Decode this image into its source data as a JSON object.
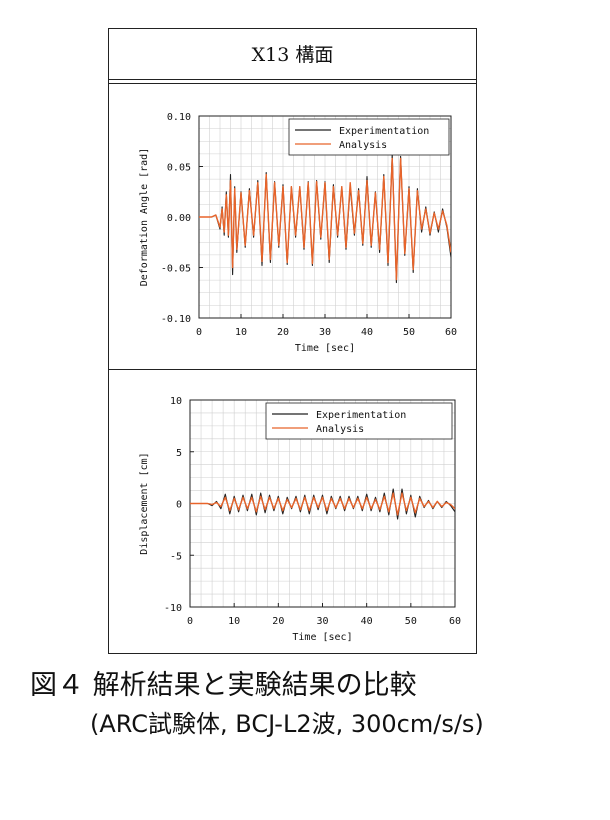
{
  "panel_title": "X13 構面",
  "caption": {
    "line1": "図４ 解析結果と実験結果の比較",
    "line2": "(ARC試験体, BCJ-L2波, 300cm/s/s)"
  },
  "colors": {
    "experimentation": "#222222",
    "analysis": "#e8642a",
    "grid": "#d0d0d0"
  },
  "chart_data": [
    {
      "type": "line",
      "xlabel": "Time [sec]",
      "ylabel": "Deformation Angle [rad]",
      "xlim": [
        0,
        60
      ],
      "ylim": [
        -0.1,
        0.1
      ],
      "xticks": [
        "0",
        "10",
        "20",
        "30",
        "40",
        "50",
        "60"
      ],
      "yticks": [
        "0.10",
        "0.05",
        "0.00",
        "-0.05",
        "-0.10"
      ],
      "grid": true,
      "legend": "top-right",
      "series": [
        {
          "name": "Experimentation",
          "x": [
            0,
            3,
            4,
            5,
            5.5,
            6,
            6.5,
            7,
            7.5,
            8,
            8.5,
            9,
            10,
            11,
            12,
            13,
            14,
            15,
            16,
            17,
            18,
            19,
            20,
            21,
            22,
            23,
            24,
            25,
            26,
            27,
            28,
            29,
            30,
            31,
            32,
            33,
            34,
            35,
            36,
            37,
            38,
            39,
            40,
            41,
            42,
            43,
            44,
            45,
            46,
            47,
            48,
            49,
            50,
            51,
            52,
            53,
            54,
            55,
            56,
            57,
            58,
            59,
            60
          ],
          "y": [
            0,
            0,
            0.002,
            -0.012,
            0.01,
            -0.018,
            0.025,
            -0.02,
            0.042,
            -0.057,
            0.03,
            -0.035,
            0.025,
            -0.03,
            0.028,
            -0.02,
            0.036,
            -0.048,
            0.044,
            -0.045,
            0.035,
            -0.03,
            0.032,
            -0.047,
            0.03,
            -0.02,
            0.03,
            -0.032,
            0.035,
            -0.048,
            0.036,
            -0.022,
            0.035,
            -0.045,
            0.032,
            -0.02,
            0.03,
            -0.032,
            0.03,
            -0.018,
            0.028,
            -0.028,
            0.04,
            -0.03,
            0.025,
            -0.035,
            0.042,
            -0.048,
            0.062,
            -0.065,
            0.06,
            -0.038,
            0.03,
            -0.055,
            0.028,
            -0.015,
            0.01,
            -0.018,
            0.005,
            -0.015,
            0.008,
            -0.01,
            -0.04
          ]
        },
        {
          "name": "Analysis",
          "x": [
            0,
            3,
            4,
            5,
            5.5,
            6,
            6.5,
            7,
            7.5,
            8,
            8.5,
            9,
            10,
            11,
            12,
            13,
            14,
            15,
            16,
            17,
            18,
            19,
            20,
            21,
            22,
            23,
            24,
            25,
            26,
            27,
            28,
            29,
            30,
            31,
            32,
            33,
            34,
            35,
            36,
            37,
            38,
            39,
            40,
            41,
            42,
            43,
            44,
            45,
            46,
            47,
            48,
            49,
            50,
            51,
            52,
            53,
            54,
            55,
            56,
            57,
            58,
            59,
            60
          ],
          "y": [
            0,
            0,
            0.002,
            -0.01,
            0.008,
            -0.015,
            0.022,
            -0.018,
            0.036,
            -0.05,
            0.028,
            -0.032,
            0.024,
            -0.028,
            0.026,
            -0.018,
            0.034,
            -0.044,
            0.042,
            -0.042,
            0.034,
            -0.028,
            0.03,
            -0.045,
            0.03,
            -0.018,
            0.03,
            -0.03,
            0.034,
            -0.046,
            0.035,
            -0.02,
            0.034,
            -0.042,
            0.03,
            -0.018,
            0.03,
            -0.03,
            0.034,
            -0.016,
            0.026,
            -0.026,
            0.036,
            -0.028,
            0.024,
            -0.032,
            0.04,
            -0.045,
            0.058,
            -0.062,
            0.058,
            -0.036,
            0.028,
            -0.052,
            0.026,
            -0.012,
            0.008,
            -0.016,
            0.004,
            -0.012,
            0.006,
            -0.008,
            -0.035
          ]
        }
      ]
    },
    {
      "type": "line",
      "xlabel": "Time [sec]",
      "ylabel": "Displacement [cm]",
      "xlim": [
        0,
        60
      ],
      "ylim": [
        -10,
        10
      ],
      "xticks": [
        "0",
        "10",
        "20",
        "30",
        "40",
        "50",
        "60"
      ],
      "yticks": [
        "10",
        "5",
        "0",
        "-5",
        "-10"
      ],
      "grid": true,
      "legend": "top-right",
      "series": [
        {
          "name": "Experimentation",
          "x": [
            0,
            4,
            5,
            6,
            7,
            8,
            9,
            10,
            11,
            12,
            13,
            14,
            15,
            16,
            17,
            18,
            19,
            20,
            21,
            22,
            23,
            24,
            25,
            26,
            27,
            28,
            29,
            30,
            31,
            32,
            33,
            34,
            35,
            36,
            37,
            38,
            39,
            40,
            41,
            42,
            43,
            44,
            45,
            46,
            47,
            48,
            49,
            50,
            51,
            52,
            53,
            54,
            55,
            56,
            57,
            58,
            59,
            60
          ],
          "y": [
            0,
            0,
            -0.2,
            0.2,
            -0.5,
            0.9,
            -1.0,
            0.7,
            -0.8,
            0.8,
            -0.7,
            0.9,
            -1.1,
            1.0,
            -0.9,
            0.8,
            -0.7,
            0.7,
            -1.0,
            0.6,
            -0.5,
            0.7,
            -0.8,
            0.8,
            -1.0,
            0.8,
            -0.6,
            0.8,
            -1.0,
            0.7,
            -0.5,
            0.7,
            -0.7,
            0.7,
            -0.5,
            0.7,
            -0.7,
            0.9,
            -0.7,
            0.6,
            -0.8,
            1.0,
            -1.1,
            1.4,
            -1.5,
            1.4,
            -1.0,
            0.8,
            -1.3,
            0.7,
            -0.4,
            0.3,
            -0.5,
            0.2,
            -0.4,
            0.2,
            -0.2,
            -0.8
          ]
        },
        {
          "name": "Analysis",
          "x": [
            0,
            4,
            5,
            6,
            7,
            8,
            9,
            10,
            11,
            12,
            13,
            14,
            15,
            16,
            17,
            18,
            19,
            20,
            21,
            22,
            23,
            24,
            25,
            26,
            27,
            28,
            29,
            30,
            31,
            32,
            33,
            34,
            35,
            36,
            37,
            38,
            39,
            40,
            41,
            42,
            43,
            44,
            45,
            46,
            47,
            48,
            49,
            50,
            51,
            52,
            53,
            54,
            55,
            56,
            57,
            58,
            59,
            60
          ],
          "y": [
            0,
            0,
            -0.1,
            0.1,
            -0.3,
            0.6,
            -0.7,
            0.5,
            -0.6,
            0.6,
            -0.5,
            0.6,
            -0.8,
            0.7,
            -0.6,
            0.6,
            -0.5,
            0.5,
            -0.7,
            0.4,
            -0.4,
            0.5,
            -0.6,
            0.6,
            -0.7,
            0.6,
            -0.4,
            0.6,
            -0.7,
            0.5,
            -0.4,
            0.5,
            -0.5,
            0.5,
            -0.4,
            0.5,
            -0.5,
            0.6,
            -0.5,
            0.4,
            -0.6,
            0.7,
            -0.8,
            1.0,
            -1.1,
            1.0,
            -0.7,
            0.6,
            -0.9,
            0.5,
            -0.3,
            0.2,
            -0.4,
            0.2,
            -0.3,
            0.1,
            -0.1,
            -0.5
          ]
        }
      ]
    }
  ]
}
